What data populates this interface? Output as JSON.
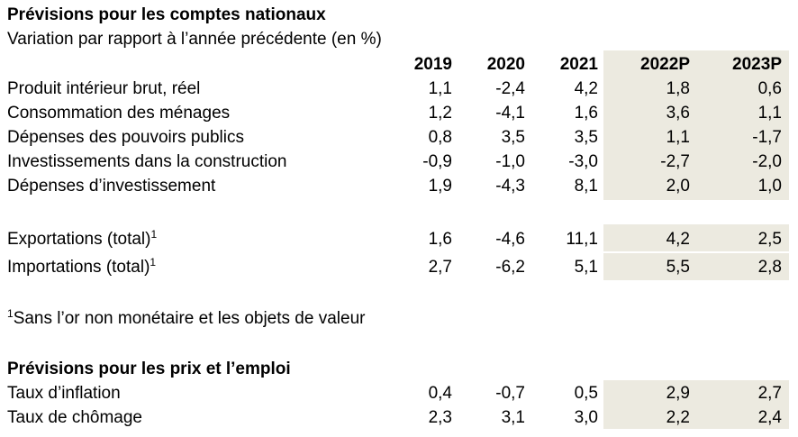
{
  "titles": {
    "national": "Prévisions pour les comptes nationaux",
    "subtitle": "Variation par rapport à l’année précédente (en %)",
    "prices": "Prévisions pour les prix et l’emploi"
  },
  "columns": [
    "2019",
    "2020",
    "2021",
    "2022P",
    "2023P"
  ],
  "national_rows": [
    {
      "label": "Produit intérieur brut, réel",
      "values": [
        "1,1",
        "-2,4",
        "4,2",
        "1,8",
        "0,6"
      ]
    },
    {
      "label": "Consommation des ménages",
      "values": [
        "1,2",
        "-4,1",
        "1,6",
        "3,6",
        "1,1"
      ]
    },
    {
      "label": "Dépenses des pouvoirs publics",
      "values": [
        "0,8",
        "3,5",
        "3,5",
        "1,1",
        "-1,7"
      ]
    },
    {
      "label": "Investissements dans la construction",
      "values": [
        "-0,9",
        "-1,0",
        "-3,0",
        "-2,7",
        "-2,0"
      ]
    },
    {
      "label": "Dépenses d’investissement",
      "values": [
        "1,9",
        "-4,3",
        "8,1",
        "2,0",
        "1,0"
      ]
    }
  ],
  "trade_rows": [
    {
      "label": "Exportations (total)",
      "sup": "1",
      "values": [
        "1,6",
        "-4,6",
        "11,1",
        "4,2",
        "2,5"
      ]
    },
    {
      "label": "Importations (total)",
      "sup": "1",
      "values": [
        "2,7",
        "-6,2",
        "5,1",
        "5,5",
        "2,8"
      ]
    }
  ],
  "footnote": {
    "marker": "1",
    "text": "Sans l’or non monétaire et les objets de valeur"
  },
  "price_rows": [
    {
      "label": "Taux d’inflation",
      "values": [
        "0,4",
        "-0,7",
        "0,5",
        "2,9",
        "2,7"
      ]
    },
    {
      "label": "Taux de chômage",
      "values": [
        "2,3",
        "3,1",
        "3,0",
        "2,2",
        "2,4"
      ]
    }
  ],
  "colors": {
    "forecast_shade": "#eceae0"
  }
}
